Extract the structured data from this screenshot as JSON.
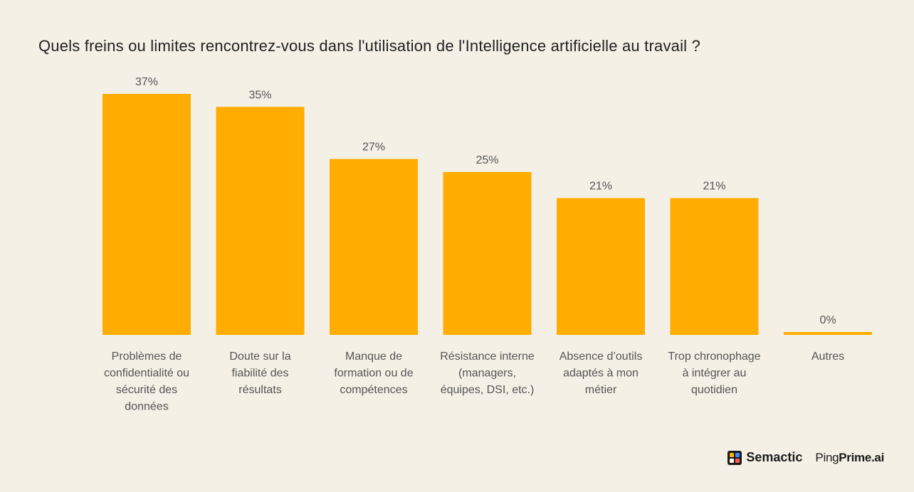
{
  "colors": {
    "background": "#f4f0e6",
    "bar": "#ffad00",
    "text": "#1f1f1f",
    "label": "#555555"
  },
  "chart_data": {
    "type": "bar",
    "title": "Quels freins ou limites rencontrez-vous dans l'utilisation de l'Intelligence artificielle au travail ?",
    "xlabel": "",
    "ylabel": "",
    "ylim": [
      0,
      37
    ],
    "grid": false,
    "categories": [
      [
        "Problèmes de",
        "confidentialité ou",
        "sécurité des",
        "données"
      ],
      [
        "Doute sur la",
        "fiabilité des",
        "résultats"
      ],
      [
        "Manque de",
        "formation ou de",
        "compétences"
      ],
      [
        "Résistance interne",
        "(managers,",
        "équipes, DSI, etc.)"
      ],
      [
        "Absence d’outils",
        "adaptés à mon",
        "métier"
      ],
      [
        "Trop chronophage",
        "à intégrer au",
        "quotidien"
      ],
      [
        "Autres"
      ]
    ],
    "values": [
      37,
      35,
      27,
      25,
      21,
      21,
      0
    ],
    "data_labels": [
      "37%",
      "35%",
      "27%",
      "25%",
      "21%",
      "21%",
      "0%"
    ]
  },
  "footer": {
    "semactic_name": "Semactic",
    "pingprime_ping": "Ping",
    "pingprime_prime": "Prime.ai",
    "semactic_icon": "semactic-logo-icon"
  }
}
